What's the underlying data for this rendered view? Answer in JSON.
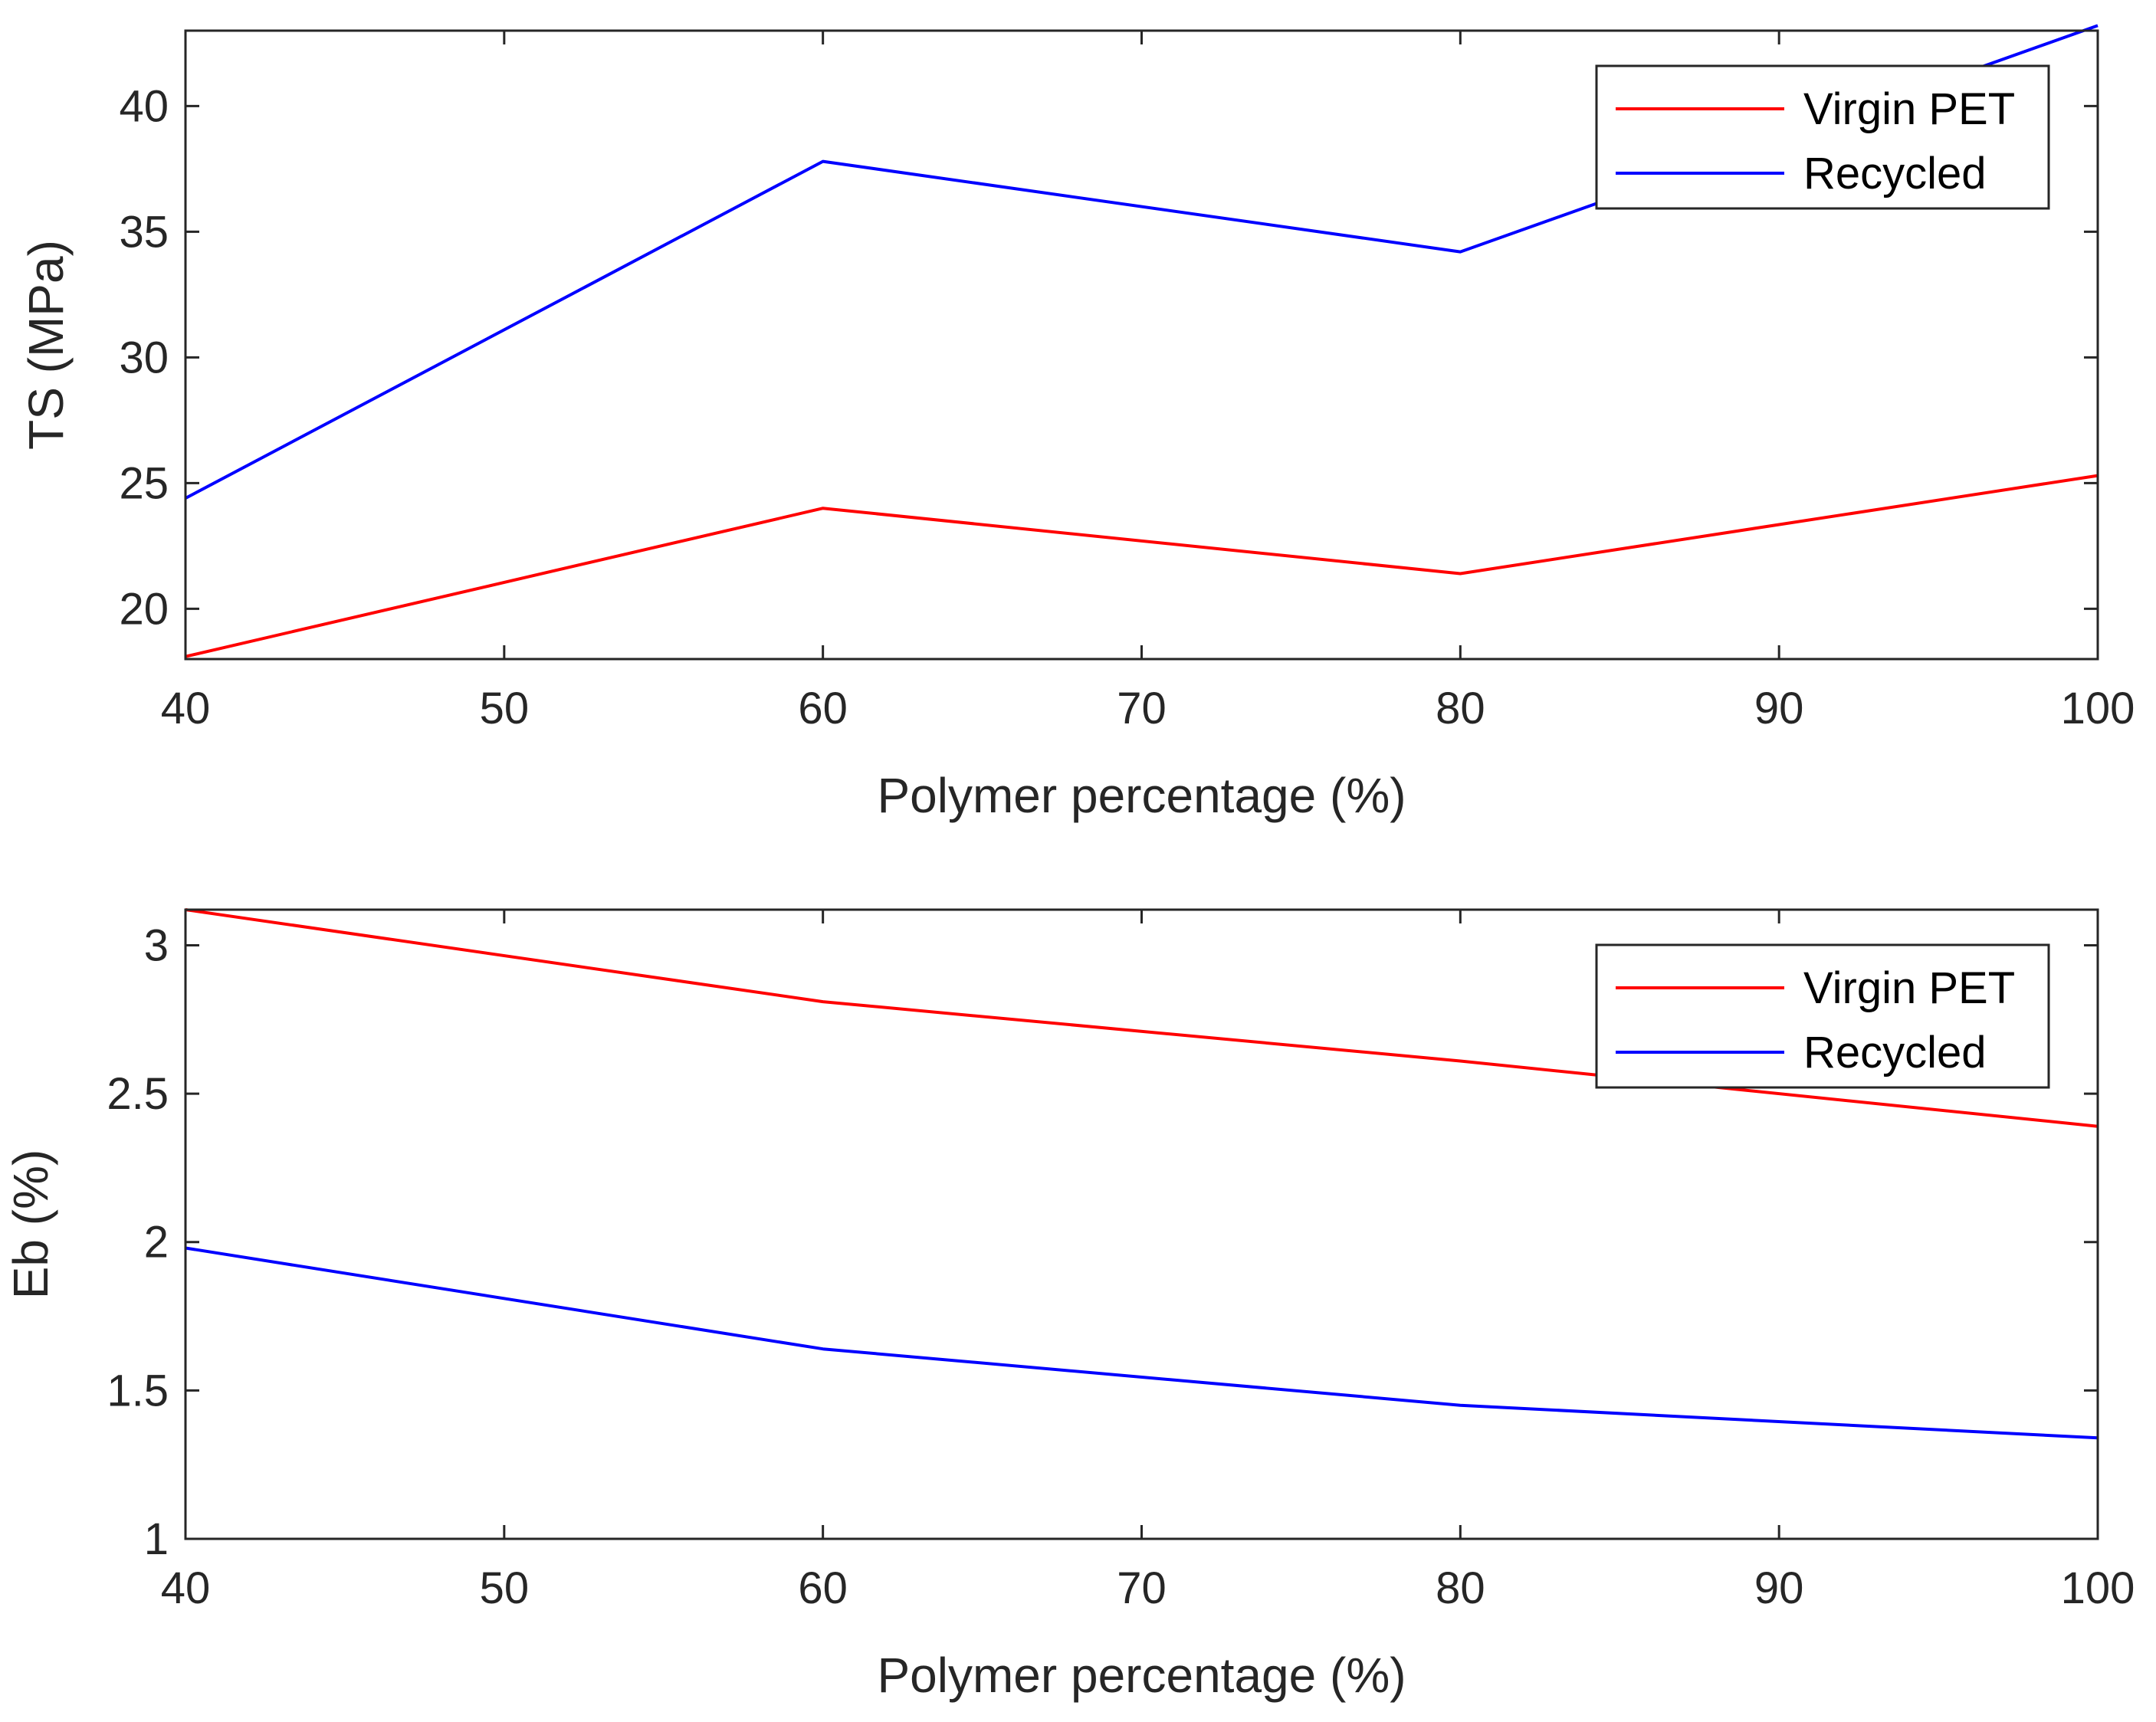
{
  "chart_data": [
    {
      "type": "line",
      "title": "",
      "xlabel": "Polymer percentage (%)",
      "ylabel": "TS (MPa)",
      "xlim": [
        40,
        100
      ],
      "ylim": [
        18,
        43
      ],
      "xticks": [
        40,
        50,
        60,
        70,
        80,
        90,
        100
      ],
      "yticks": [
        20,
        25,
        30,
        35,
        40
      ],
      "x": [
        40,
        60,
        80,
        100
      ],
      "series": [
        {
          "name": "Virgin PET",
          "color": "#ff0000",
          "values": [
            18.1,
            24.0,
            21.4,
            25.3
          ]
        },
        {
          "name": "Recycled",
          "color": "#0000ff",
          "values": [
            24.4,
            37.8,
            34.2,
            43.2
          ]
        }
      ],
      "legend": "top-right"
    },
    {
      "type": "line",
      "title": "",
      "xlabel": "Polymer percentage (%)",
      "ylabel": "Eb (%)",
      "xlim": [
        40,
        100
      ],
      "ylim": [
        1,
        3.12
      ],
      "xticks": [
        40,
        50,
        60,
        70,
        80,
        90,
        100
      ],
      "yticks": [
        1,
        1.5,
        2,
        2.5,
        3
      ],
      "x": [
        40,
        60,
        80,
        100
      ],
      "series": [
        {
          "name": "Virgin PET",
          "color": "#ff0000",
          "values": [
            3.12,
            2.81,
            2.61,
            2.39
          ]
        },
        {
          "name": "Recycled",
          "color": "#0000ff",
          "values": [
            1.98,
            1.64,
            1.45,
            1.34
          ]
        }
      ],
      "legend": "top-right"
    }
  ]
}
